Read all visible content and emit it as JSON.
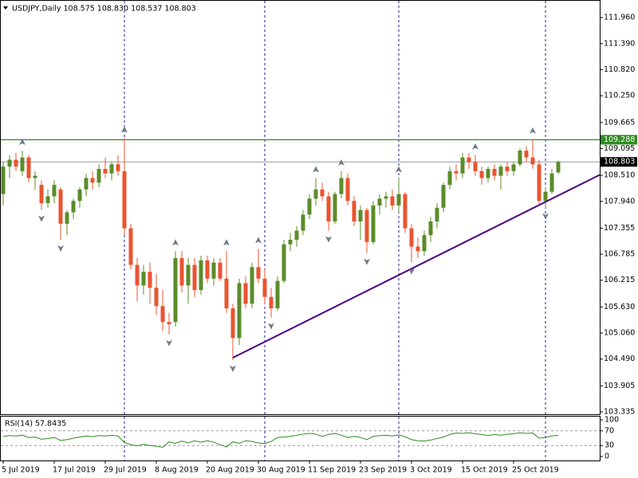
{
  "chart_data": {
    "type": "candlestick",
    "title": "USDJPY,Daily  108.575 108.830 108.537 108.803",
    "categories": [
      "5 Jul 2019",
      null,
      null,
      null,
      null,
      null,
      null,
      null,
      "17 Jul 2019",
      null,
      null,
      null,
      null,
      null,
      null,
      null,
      "29 Jul 2019",
      null,
      null,
      null,
      null,
      null,
      null,
      null,
      "8 Aug 2019",
      null,
      null,
      null,
      null,
      null,
      null,
      null,
      "20 Aug 2019",
      null,
      null,
      null,
      null,
      null,
      null,
      null,
      "30 Aug 2019",
      null,
      null,
      null,
      null,
      null,
      null,
      null,
      "11 Sep 2019",
      null,
      null,
      null,
      null,
      null,
      null,
      null,
      "23 Sep 2019",
      null,
      null,
      null,
      null,
      null,
      null,
      null,
      "3 Oct 2019",
      null,
      null,
      null,
      null,
      null,
      null,
      null,
      "15 Oct 2019",
      null,
      null,
      null,
      null,
      null,
      null,
      null,
      "25 Oct 2019",
      null,
      null,
      null,
      null,
      null,
      null,
      null
    ],
    "open": [
      108.1,
      108.7,
      108.85,
      108.6,
      108.9,
      108.45,
      108.3,
      107.9,
      108.05,
      108.2,
      107.45,
      107.7,
      107.95,
      108.2,
      108.45,
      108.35,
      108.65,
      108.55,
      108.75,
      108.6,
      107.35,
      106.55,
      106.1,
      106.4,
      106.05,
      105.65,
      105.3,
      105.3,
      106.7,
      106.1,
      106.55,
      106.0,
      106.65,
      106.25,
      106.6,
      106.25,
      105.6,
      104.95,
      106.15,
      105.7,
      106.5,
      106.25,
      105.85,
      105.6,
      106.2,
      107.0,
      107.1,
      107.3,
      107.65,
      108.0,
      108.2,
      108.05,
      107.5,
      108.1,
      108.45,
      107.95,
      107.5,
      107.75,
      107.05,
      107.85,
      108.0,
      108.05,
      107.85,
      108.1,
      107.35,
      106.95,
      106.85,
      107.2,
      107.5,
      107.8,
      108.3,
      108.6,
      108.55,
      108.9,
      108.8,
      108.6,
      108.45,
      108.65,
      108.5,
      108.7,
      108.6,
      108.75,
      109.05,
      108.9,
      108.75,
      107.95,
      108.15,
      108.575
    ],
    "high": [
      108.8,
      108.95,
      109.0,
      109.05,
      108.95,
      108.6,
      108.4,
      108.2,
      108.4,
      108.25,
      107.75,
      108.0,
      108.25,
      108.55,
      108.6,
      108.75,
      108.9,
      108.8,
      108.95,
      109.32,
      107.45,
      106.7,
      106.55,
      106.6,
      106.35,
      106.0,
      105.5,
      106.85,
      106.85,
      106.7,
      106.7,
      106.75,
      106.75,
      106.7,
      106.7,
      106.85,
      105.7,
      106.25,
      106.3,
      106.6,
      106.9,
      106.45,
      106.05,
      106.3,
      107.1,
      107.25,
      107.4,
      107.75,
      108.1,
      108.45,
      108.35,
      108.15,
      108.15,
      108.6,
      108.55,
      108.05,
      107.85,
      107.8,
      107.95,
      108.1,
      108.15,
      108.2,
      108.45,
      108.15,
      107.45,
      107.15,
      107.3,
      107.6,
      107.9,
      108.35,
      108.7,
      108.75,
      109.0,
      109.0,
      108.95,
      108.7,
      108.7,
      108.75,
      108.75,
      108.8,
      108.8,
      109.1,
      109.15,
      109.3,
      108.85,
      108.25,
      108.65,
      108.83
    ],
    "low": [
      107.85,
      108.45,
      108.6,
      108.5,
      108.35,
      108.2,
      107.75,
      107.8,
      107.9,
      107.1,
      107.2,
      107.55,
      107.8,
      108.05,
      108.2,
      108.25,
      108.45,
      108.4,
      108.5,
      107.2,
      106.45,
      105.75,
      105.9,
      105.7,
      105.45,
      105.1,
      105.03,
      105.2,
      105.95,
      105.7,
      105.85,
      105.9,
      106.15,
      106.1,
      106.2,
      105.5,
      104.47,
      104.8,
      105.6,
      105.6,
      106.15,
      105.7,
      105.4,
      105.55,
      106.15,
      106.85,
      106.95,
      107.2,
      107.55,
      107.85,
      107.95,
      107.3,
      107.45,
      108.0,
      107.85,
      107.4,
      107.1,
      106.81,
      107.0,
      107.65,
      107.8,
      107.75,
      107.7,
      107.25,
      106.6,
      106.7,
      106.75,
      107.05,
      107.35,
      107.7,
      108.2,
      108.4,
      108.45,
      108.65,
      108.5,
      108.3,
      108.35,
      108.4,
      108.2,
      108.5,
      108.5,
      108.7,
      108.8,
      108.65,
      107.85,
      107.8,
      108.1,
      108.537
    ],
    "close": [
      108.7,
      108.85,
      108.7,
      108.9,
      108.45,
      108.5,
      107.9,
      108.05,
      108.3,
      107.45,
      107.7,
      107.95,
      108.2,
      108.45,
      108.35,
      108.65,
      108.55,
      108.75,
      108.6,
      107.35,
      106.55,
      106.1,
      106.4,
      106.05,
      105.65,
      105.3,
      105.25,
      106.7,
      106.1,
      106.55,
      106.0,
      106.65,
      106.25,
      106.6,
      106.25,
      105.6,
      104.95,
      106.15,
      105.7,
      106.5,
      106.25,
      105.85,
      105.6,
      106.2,
      107.0,
      107.1,
      107.3,
      107.65,
      108.0,
      108.2,
      108.05,
      107.5,
      108.1,
      108.45,
      107.95,
      107.5,
      107.75,
      107.05,
      107.85,
      108.0,
      108.05,
      107.85,
      108.1,
      107.35,
      106.95,
      106.85,
      107.2,
      107.5,
      107.8,
      108.3,
      108.6,
      108.55,
      108.9,
      108.8,
      108.6,
      108.45,
      108.65,
      108.5,
      108.7,
      108.6,
      108.75,
      109.05,
      108.9,
      108.75,
      107.95,
      108.15,
      108.55,
      108.803
    ],
    "up_color": "#5b8c2a",
    "down_color": "#ea5430",
    "ylim": [
      103.283,
      112.327
    ],
    "yticks": [
      {
        "value": 111.96,
        "label": "111.960"
      },
      {
        "value": 111.39,
        "label": "111.390"
      },
      {
        "value": 110.82,
        "label": "110.820"
      },
      {
        "value": 110.25,
        "label": "110.250"
      },
      109.665,
      109.095,
      {
        "value": 108.51,
        "label": "108.510"
      },
      {
        "value": 107.94,
        "label": "107.940"
      },
      107.355,
      106.785,
      106.215,
      {
        "value": 105.63,
        "label": "105.630"
      },
      {
        "value": 105.06,
        "label": "105.060"
      },
      {
        "value": 104.49,
        "label": "104.490"
      },
      103.905,
      103.335
    ],
    "hline": {
      "value": 109.288,
      "color": "#2e8b22"
    },
    "current_price": 108.803,
    "trendline": {
      "x": [
        36,
        93.5
      ],
      "y": [
        104.52,
        108.52
      ],
      "color": "#4b0082"
    },
    "fractals": {
      "up": [
        3,
        19,
        27,
        35,
        40,
        49,
        53,
        62,
        74,
        83
      ],
      "down": [
        6,
        9,
        26,
        36,
        42,
        51,
        57,
        64,
        85
      ]
    },
    "indicator": {
      "title": "RSI(14) 57.8435",
      "color": "#2e8b22",
      "ylim": [
        0,
        100
      ],
      "yticks": [
        0,
        30,
        70,
        100
      ],
      "levels": [
        30,
        70
      ],
      "values": [
        55,
        57,
        56,
        58,
        52,
        53,
        47,
        49,
        52,
        44,
        46,
        50,
        53,
        56,
        54,
        57,
        56,
        58,
        56,
        38,
        32,
        29,
        33,
        30,
        28,
        25,
        40,
        36,
        42,
        37,
        43,
        39,
        43,
        39,
        32,
        26,
        40,
        36,
        43,
        41,
        37,
        35,
        41,
        52,
        53,
        55,
        58,
        61,
        63,
        61,
        55,
        60,
        63,
        58,
        52,
        55,
        52,
        46,
        55,
        57,
        58,
        56,
        59,
        54,
        46,
        43,
        42,
        45,
        49,
        53,
        60,
        64,
        63,
        65,
        62,
        60,
        57,
        60,
        58,
        61,
        62,
        65,
        63,
        64,
        50,
        52,
        56,
        57.8435
      ]
    }
  }
}
